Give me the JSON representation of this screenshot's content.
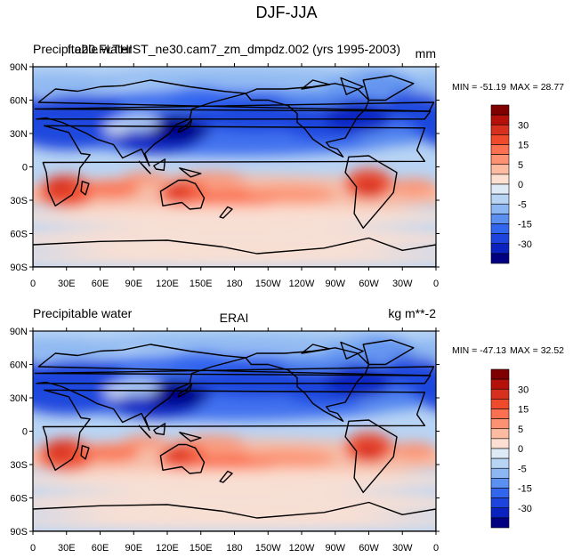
{
  "figure": {
    "title": "DJF-JJA"
  },
  "panels": [
    {
      "left_title": "Precipitable water",
      "overlay_title": "f.e20.FLTHIST_ne30.cam7_zm_dmpdz.002 (yrs 1995-2003)",
      "right_title": "mm",
      "min_text": "MIN = -51.19",
      "max_text": "MAX =  28.77",
      "land": "model"
    },
    {
      "left_title": "Precipitable water",
      "center_title": "ERAI",
      "right_title": "kg m**-2",
      "min_text": "MIN = -47.13",
      "max_text": "MAX =  32.52",
      "land": "obs"
    }
  ],
  "axes": {
    "lat_ticks": [
      "90N",
      "60N",
      "30N",
      "0",
      "30S",
      "60S",
      "90S"
    ],
    "lon_ticks": [
      "0",
      "30E",
      "60E",
      "90E",
      "120E",
      "150E",
      "180",
      "150W",
      "120W",
      "90W",
      "60W",
      "30W",
      "0"
    ]
  },
  "colorbar": {
    "labels": [
      "30",
      "15",
      "5",
      "0",
      "-5",
      "-15",
      "-30"
    ],
    "colors": [
      "#7f0000",
      "#b5110a",
      "#d7301f",
      "#ef4a2b",
      "#fb7050",
      "#fc9272",
      "#fdbba1",
      "#fde0d2",
      "#deebf7",
      "#b8d4f4",
      "#8cb7f2",
      "#5b8ff0",
      "#3366ee",
      "#1d44dd",
      "#0a22c0",
      "#000080"
    ]
  }
}
